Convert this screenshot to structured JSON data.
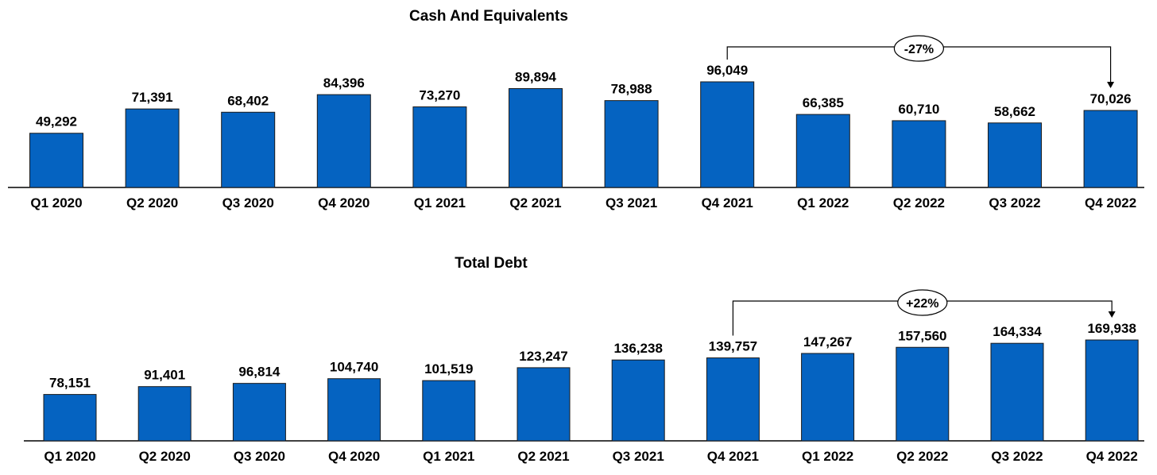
{
  "colors": {
    "bar": "#0563C1",
    "bar_stroke": "#1a1a1a",
    "axis": "#000000",
    "text": "#000000"
  },
  "chart_data": [
    {
      "type": "bar",
      "title": "Cash And Equivalents",
      "xlabel": "",
      "ylabel": "",
      "grid": false,
      "categories": [
        "Q1 2020",
        "Q2 2020",
        "Q3 2020",
        "Q4 2020",
        "Q1 2021",
        "Q2 2021",
        "Q3 2021",
        "Q4 2021",
        "Q1 2022",
        "Q2 2022",
        "Q3 2022",
        "Q4 2022"
      ],
      "values": [
        49292,
        71391,
        68402,
        84396,
        73270,
        89894,
        78988,
        96049,
        66385,
        60710,
        58662,
        70026
      ],
      "value_labels": [
        "49,292",
        "71,391",
        "68,402",
        "84,396",
        "73,270",
        "89,894",
        "78,988",
        "96,049",
        "66,385",
        "60,710",
        "58,662",
        "70,026"
      ],
      "annotation": {
        "from": "Q4 2021",
        "to": "Q4 2022",
        "label": "-27%"
      }
    },
    {
      "type": "bar",
      "title": "Total Debt",
      "xlabel": "",
      "ylabel": "",
      "grid": false,
      "categories": [
        "Q1 2020",
        "Q2 2020",
        "Q3 2020",
        "Q4 2020",
        "Q1 2021",
        "Q2 2021",
        "Q3 2021",
        "Q4 2021",
        "Q1 2022",
        "Q2 2022",
        "Q3 2022",
        "Q4 2022"
      ],
      "values": [
        78151,
        91401,
        96814,
        104740,
        101519,
        123247,
        136238,
        139757,
        147267,
        157560,
        164334,
        169938
      ],
      "value_labels": [
        "78,151",
        "91,401",
        "96,814",
        "104,740",
        "101,519",
        "123,247",
        "136,238",
        "139,757",
        "147,267",
        "157,560",
        "164,334",
        "169,938"
      ],
      "annotation": {
        "from": "Q4 2021",
        "to": "Q4 2022",
        "label": "+22%"
      }
    }
  ]
}
